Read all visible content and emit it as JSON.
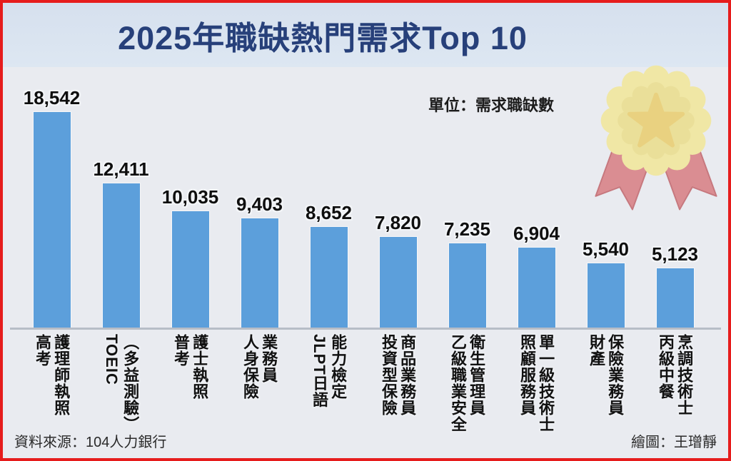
{
  "header": {
    "title": "2025年職缺熱門需求Top 10"
  },
  "unit_label": "單位：需求職缺數",
  "medal_icon": "award-rosette-ribbon-icon",
  "colors": {
    "border": "#e61c1c",
    "background": "#e9ebf0",
    "header_band": "#dbe4ef",
    "title_text": "#27407a",
    "bar": "#5c9fdb",
    "axis_line": "#b7bdc7",
    "medal_yellow": "#f1e79f",
    "medal_star": "#e9cf77",
    "ribbon_pink": "#d9868b"
  },
  "chart_data": {
    "type": "bar",
    "title": "2025年職缺熱門需求Top 10",
    "unit": "需求職缺數",
    "categories": [
      "高考護理師執照",
      "TOEIC（多益測驗）",
      "普考護士執照",
      "人身保險業務員",
      "JLPT日語能力檢定",
      "投資型保險商品業務員",
      "乙級職業安全衛生管理員",
      "照顧服務員單一級技術士",
      "財產保險業務員",
      "丙級中餐烹調技術士"
    ],
    "values": [
      18542,
      12411,
      10035,
      9403,
      8652,
      7820,
      7235,
      6904,
      5540,
      5123
    ],
    "value_labels": [
      "18,542",
      "12,411",
      "10,035",
      "9,403",
      "8,652",
      "7,820",
      "7,235",
      "6,904",
      "5,540",
      "5,123"
    ],
    "label_columns": [
      [
        "高考",
        "護理師執照"
      ],
      [
        "TOEIC",
        "（多益測驗）"
      ],
      [
        "普考",
        "護士執照"
      ],
      [
        "人身保險",
        "業務員"
      ],
      [
        "JLPT日語",
        "能力檢定"
      ],
      [
        "投資型保險",
        "商品業務員"
      ],
      [
        "乙級職業安全",
        "衛生管理員"
      ],
      [
        "照顧服務員",
        "單一級技術士"
      ],
      [
        "財產",
        "保險業務員"
      ],
      [
        "丙級中餐",
        "烹調技術士"
      ]
    ],
    "scale_max": 18542,
    "ylim": [
      0,
      18542
    ],
    "grid": false,
    "legend": false,
    "orientation": "vertical-bars"
  },
  "footer": {
    "source": "資料來源：104人力銀行",
    "credit": "繪圖：王璔靜"
  }
}
